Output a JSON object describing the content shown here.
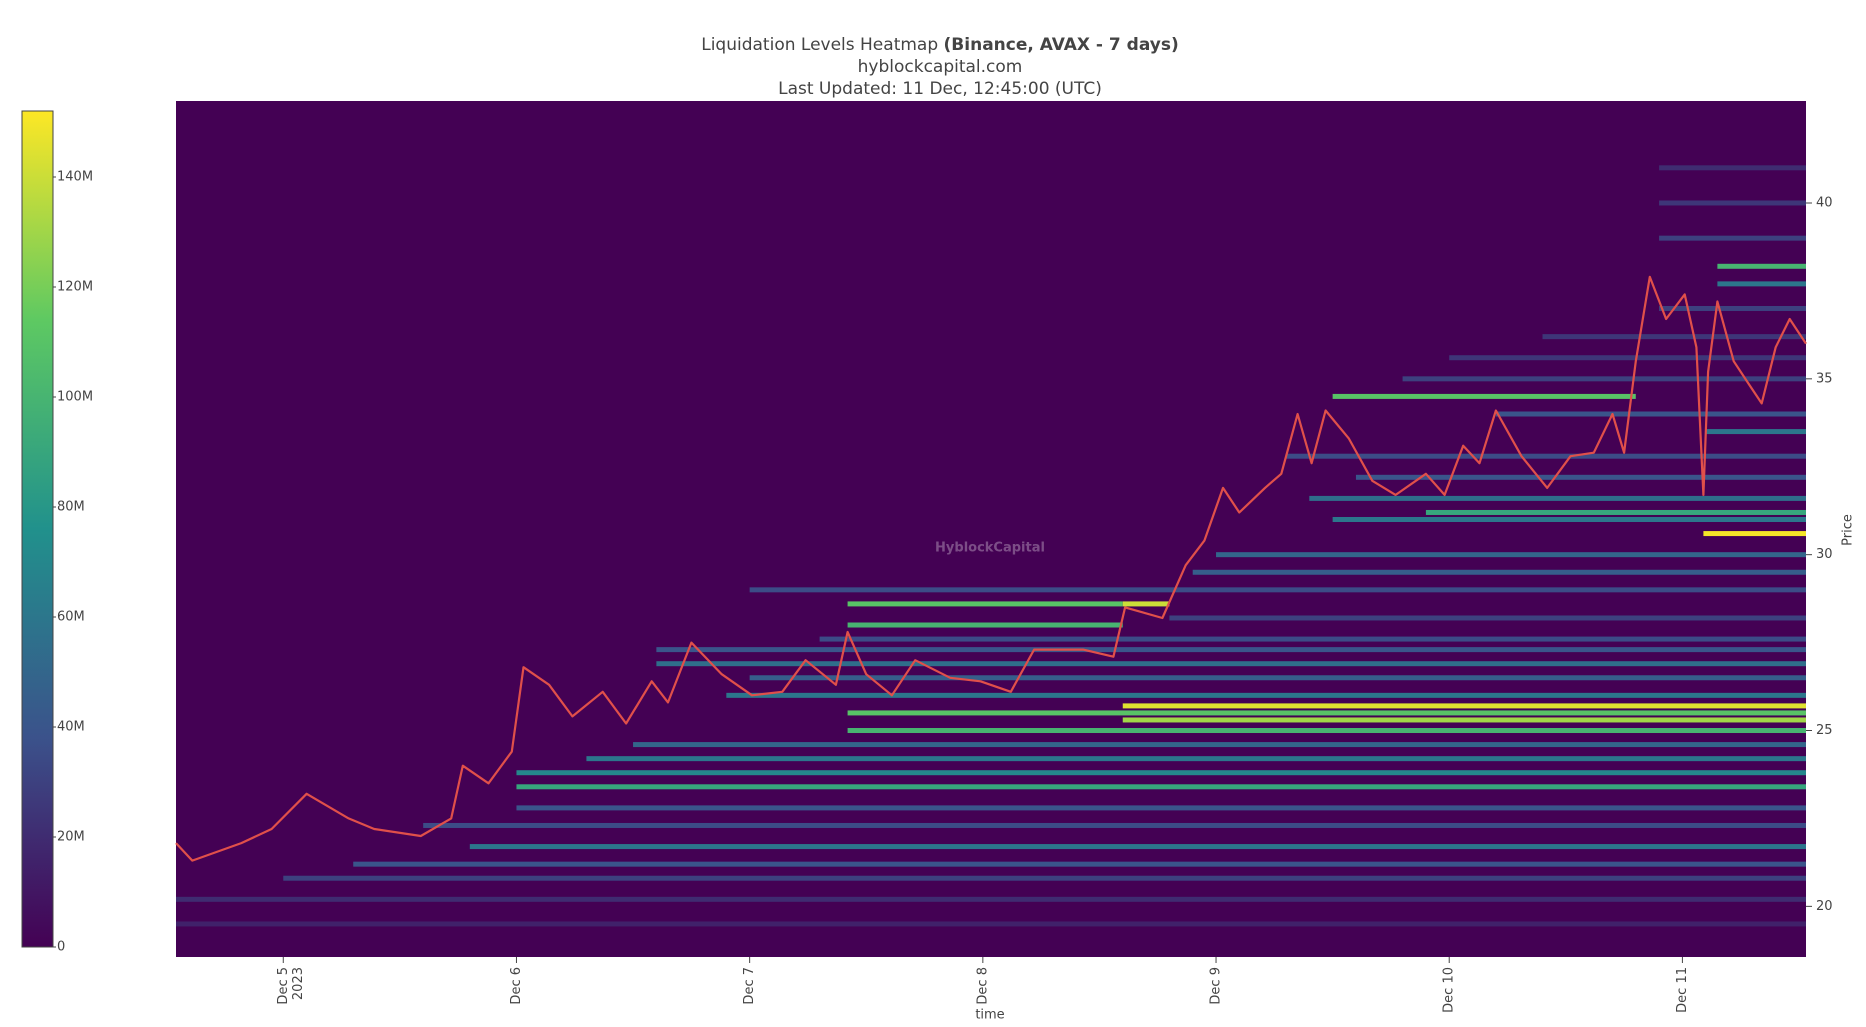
{
  "chart_data": {
    "type": "heatmap",
    "title": "Liquidation Levels Heatmap",
    "title_bold": "(Binance, AVAX - 7 days)",
    "subtitle": "hyblockcapital.com",
    "updated": "Last Updated: 11 Dec, 12:45:00 (UTC)",
    "watermark": "HyblockCapital",
    "x_label": "time",
    "y_label": "Price",
    "background": "#440154",
    "colorscale": [
      "#440154",
      "#3b528b",
      "#21918c",
      "#5ec962",
      "#fde725"
    ],
    "clim": [
      0,
      152000000
    ],
    "cticks": [
      {
        "value": 0,
        "label": "0"
      },
      {
        "value": 20000000,
        "label": "20M"
      },
      {
        "value": 40000000,
        "label": "40M"
      },
      {
        "value": 60000000,
        "label": "60M"
      },
      {
        "value": 80000000,
        "label": "80M"
      },
      {
        "value": 100000000,
        "label": "100M"
      },
      {
        "value": 120000000,
        "label": "120M"
      },
      {
        "value": 140000000,
        "label": "140M"
      }
    ],
    "xlim": [
      4.54,
      11.53
    ],
    "xticks": [
      {
        "value": 5,
        "label": "Dec 5"
      },
      {
        "value": 6,
        "label": "Dec 6"
      },
      {
        "value": 7,
        "label": "Dec 7"
      },
      {
        "value": 8,
        "label": "Dec 8"
      },
      {
        "value": 9,
        "label": "Dec 9"
      },
      {
        "value": 10,
        "label": "Dec 10"
      },
      {
        "value": 11,
        "label": "Dec 11"
      }
    ],
    "x_year": "2023",
    "ylim": [
      18.56,
      42.9
    ],
    "yticks": [
      20,
      25,
      30,
      35,
      40
    ],
    "levels": {
      "price": [
        19.5,
        20.2,
        20.8,
        21.2,
        21.7,
        22.3,
        22.8,
        23.4,
        23.8,
        24.2,
        24.6,
        25.0,
        25.3,
        25.5,
        25.7,
        26.0,
        26.5,
        26.9,
        27.3,
        27.6,
        28.0,
        28.2,
        28.6,
        28.6,
        29.0,
        29.5,
        30.0,
        30.6,
        31.0,
        31.2,
        31.6,
        32.2,
        32.8,
        33.5,
        34.0,
        34.5,
        35.0,
        35.6,
        36.2,
        37.0,
        37.7,
        38.2,
        39.0,
        40.0,
        41.0
      ],
      "start": [
        4.54,
        4.54,
        5.0,
        5.3,
        5.8,
        5.6,
        6.0,
        6.0,
        6.0,
        6.3,
        6.5,
        7.42,
        8.6,
        7.42,
        8.6,
        6.9,
        7.0,
        6.6,
        6.6,
        7.3,
        7.42,
        8.8,
        7.42,
        8.6,
        7.0,
        8.9,
        9.0,
        11.09,
        9.5,
        9.9,
        9.4,
        9.6,
        9.3,
        11.1,
        10.2,
        9.5,
        9.8,
        10.0,
        10.4,
        10.9,
        11.15,
        11.15,
        10.9,
        10.9,
        10.9
      ],
      "end": [
        11.53,
        11.53,
        11.53,
        11.53,
        11.53,
        11.53,
        11.53,
        11.53,
        11.53,
        11.53,
        11.53,
        11.53,
        11.53,
        11.53,
        11.53,
        11.53,
        11.53,
        11.53,
        11.53,
        11.53,
        8.6,
        11.53,
        8.6,
        8.8,
        11.53,
        11.53,
        11.53,
        11.53,
        11.53,
        11.53,
        11.53,
        11.53,
        11.53,
        11.53,
        11.53,
        10.8,
        11.53,
        11.53,
        11.53,
        11.53,
        11.53,
        11.53,
        11.53,
        11.53,
        11.53
      ],
      "values": [
        15000000,
        20000000,
        30000000,
        40000000,
        60000000,
        35000000,
        40000000,
        90000000,
        70000000,
        60000000,
        50000000,
        100000000,
        130000000,
        110000000,
        145000000,
        60000000,
        45000000,
        55000000,
        40000000,
        35000000,
        100000000,
        30000000,
        110000000,
        140000000,
        35000000,
        45000000,
        50000000,
        150000000,
        60000000,
        90000000,
        55000000,
        40000000,
        35000000,
        60000000,
        40000000,
        110000000,
        30000000,
        25000000,
        25000000,
        30000000,
        60000000,
        100000000,
        30000000,
        25000000,
        20000000
      ]
    },
    "price_line": {
      "color": "#e0504a",
      "x": [
        4.54,
        4.61,
        4.82,
        4.95,
        5.1,
        5.28,
        5.39,
        5.59,
        5.72,
        5.77,
        5.88,
        5.98,
        6.03,
        6.14,
        6.24,
        6.37,
        6.47,
        6.58,
        6.65,
        6.75,
        6.88,
        7.01,
        7.14,
        7.24,
        7.37,
        7.42,
        7.5,
        7.61,
        7.71,
        7.86,
        7.99,
        8.12,
        8.22,
        8.43,
        8.56,
        8.61,
        8.77,
        8.87,
        8.95,
        9.03,
        9.1,
        9.21,
        9.28,
        9.35,
        9.41,
        9.47,
        9.57,
        9.67,
        9.77,
        9.9,
        9.98,
        10.06,
        10.13,
        10.2,
        10.31,
        10.42,
        10.52,
        10.62,
        10.7,
        10.75,
        10.8,
        10.86,
        10.93,
        11.01,
        11.06,
        11.09,
        11.11,
        11.15,
        11.22,
        11.29,
        11.34,
        11.4,
        11.46,
        11.53
      ],
      "values": [
        21.8,
        21.3,
        21.8,
        22.2,
        23.2,
        22.5,
        22.2,
        22.0,
        22.5,
        24.0,
        23.5,
        24.4,
        26.8,
        26.3,
        25.4,
        26.1,
        25.2,
        26.4,
        25.8,
        27.5,
        26.6,
        26.0,
        26.1,
        27.0,
        26.3,
        27.8,
        26.6,
        26.0,
        27.0,
        26.5,
        26.4,
        26.1,
        27.3,
        27.3,
        27.1,
        28.5,
        28.2,
        29.7,
        30.4,
        31.9,
        31.2,
        31.9,
        32.3,
        34.0,
        32.6,
        34.1,
        33.3,
        32.1,
        31.7,
        32.3,
        31.7,
        33.1,
        32.6,
        34.1,
        32.8,
        31.9,
        32.8,
        32.9,
        34.0,
        32.9,
        35.5,
        37.9,
        36.7,
        37.4,
        35.9,
        31.7,
        35.2,
        37.2,
        35.5,
        34.8,
        34.3,
        35.9,
        36.7,
        36.0
      ]
    }
  }
}
